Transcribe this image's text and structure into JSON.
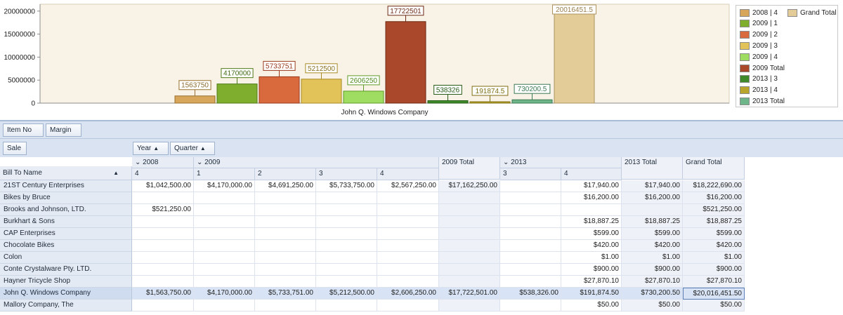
{
  "chart_data": {
    "type": "bar",
    "categories": [
      "John Q. Windows Company"
    ],
    "yticks": [
      "20000000",
      "15000000",
      "10000000",
      "5000000",
      "0"
    ],
    "ylim": [
      0,
      21500000
    ],
    "series": [
      {
        "name": "2008 | 4",
        "value": 1563750,
        "label": "1563750",
        "color": "#d7a65a",
        "border": "#9a7030",
        "labelColor": "#8a6a30"
      },
      {
        "name": "2009 | 1",
        "value": 4170000,
        "label": "4170000",
        "color": "#7fae2e",
        "border": "#4f7a16",
        "labelColor": "#3f6a10"
      },
      {
        "name": "2009 | 2",
        "value": 5733751,
        "label": "5733751",
        "color": "#d96a3e",
        "border": "#9a3a1c",
        "labelColor": "#9a3a1c"
      },
      {
        "name": "2009 | 3",
        "value": 5212500,
        "label": "5212500",
        "color": "#e2c35a",
        "border": "#a88a24",
        "labelColor": "#8a7020"
      },
      {
        "name": "2009 | 4",
        "value": 2606250,
        "label": "2606250",
        "color": "#9fdc62",
        "border": "#5f9c28",
        "labelColor": "#4f8a1c"
      },
      {
        "name": "2009 Total",
        "value": 17722501,
        "label": "17722501",
        "color": "#a9482a",
        "border": "#6e2a14",
        "labelColor": "#6e2a14"
      },
      {
        "name": "2013 | 3",
        "value": 538326,
        "label": "538326",
        "color": "#3f8a2a",
        "border": "#245a14",
        "labelColor": "#245a14"
      },
      {
        "name": "2013 | 4",
        "value": 191874.5,
        "label": "191874.5",
        "color": "#b9a52c",
        "border": "#7e6e12",
        "labelColor": "#7e6e12"
      },
      {
        "name": "2013 Total",
        "value": 730200.5,
        "label": "730200.5",
        "color": "#6fb58a",
        "border": "#3a7a52",
        "labelColor": "#3a7a52"
      },
      {
        "name": "Grand Total",
        "value": 20016451.5,
        "label": "20016451.5",
        "color": "#e3cc98",
        "border": "#ad9460",
        "labelColor": "#9a8050"
      }
    ],
    "legend": "right"
  },
  "pivot": {
    "filter_fields": [
      "Item No",
      "Margin"
    ],
    "data_field": "Sale",
    "column_fields": [
      "Year",
      "Quarter"
    ],
    "row_field": "Bill To Name",
    "columns": [
      {
        "year": "2008",
        "quarter": "4"
      },
      {
        "year": "2009",
        "quarter": "1"
      },
      {
        "year": "",
        "quarter": "2"
      },
      {
        "year": "",
        "quarter": "3"
      },
      {
        "year": "",
        "quarter": "4"
      },
      {
        "year": "2009 Total",
        "quarter": ""
      },
      {
        "year": "2013",
        "quarter": "3"
      },
      {
        "year": "",
        "quarter": "4"
      },
      {
        "year": "2013 Total",
        "quarter": ""
      },
      {
        "year": "Grand Total",
        "quarter": ""
      }
    ],
    "rows": [
      {
        "name": "21ST Century Enterprises",
        "cells": [
          "$1,042,500.00",
          "$4,170,000.00",
          "$4,691,250.00",
          "$5,733,750.00",
          "$2,567,250.00",
          "$17,162,250.00",
          "",
          "$17,940.00",
          "$17,940.00",
          "$18,222,690.00"
        ]
      },
      {
        "name": "Bikes by Bruce",
        "cells": [
          "",
          "",
          "",
          "",
          "",
          "",
          "",
          "$16,200.00",
          "$16,200.00",
          "$16,200.00"
        ]
      },
      {
        "name": "Brooks and Johnson, LTD.",
        "cells": [
          "$521,250.00",
          "",
          "",
          "",
          "",
          "",
          "",
          "",
          "",
          "$521,250.00"
        ]
      },
      {
        "name": "Burkhart & Sons",
        "cells": [
          "",
          "",
          "",
          "",
          "",
          "",
          "",
          "$18,887.25",
          "$18,887.25",
          "$18,887.25"
        ]
      },
      {
        "name": "CAP Enterprises",
        "cells": [
          "",
          "",
          "",
          "",
          "",
          "",
          "",
          "$599.00",
          "$599.00",
          "$599.00"
        ]
      },
      {
        "name": "Chocolate Bikes",
        "cells": [
          "",
          "",
          "",
          "",
          "",
          "",
          "",
          "$420.00",
          "$420.00",
          "$420.00"
        ]
      },
      {
        "name": "Colon",
        "cells": [
          "",
          "",
          "",
          "",
          "",
          "",
          "",
          "$1.00",
          "$1.00",
          "$1.00"
        ]
      },
      {
        "name": "Conte Crystalware Pty. LTD.",
        "cells": [
          "",
          "",
          "",
          "",
          "",
          "",
          "",
          "$900.00",
          "$900.00",
          "$900.00"
        ]
      },
      {
        "name": "Hayner Tricycle Shop",
        "cells": [
          "",
          "",
          "",
          "",
          "",
          "",
          "",
          "$27,870.10",
          "$27,870.10",
          "$27,870.10"
        ]
      },
      {
        "name": "John Q. Windows Company",
        "selected": true,
        "cells": [
          "$1,563,750.00",
          "$4,170,000.00",
          "$5,733,751.00",
          "$5,212,500.00",
          "$2,606,250.00",
          "$17,722,501.00",
          "$538,326.00",
          "$191,874.50",
          "$730,200.50",
          "$20,016,451.50"
        ]
      },
      {
        "name": "Mallory Company, The",
        "cells": [
          "",
          "",
          "",
          "",
          "",
          "",
          "",
          "$50.00",
          "$50.00",
          "$50.00"
        ]
      }
    ]
  }
}
